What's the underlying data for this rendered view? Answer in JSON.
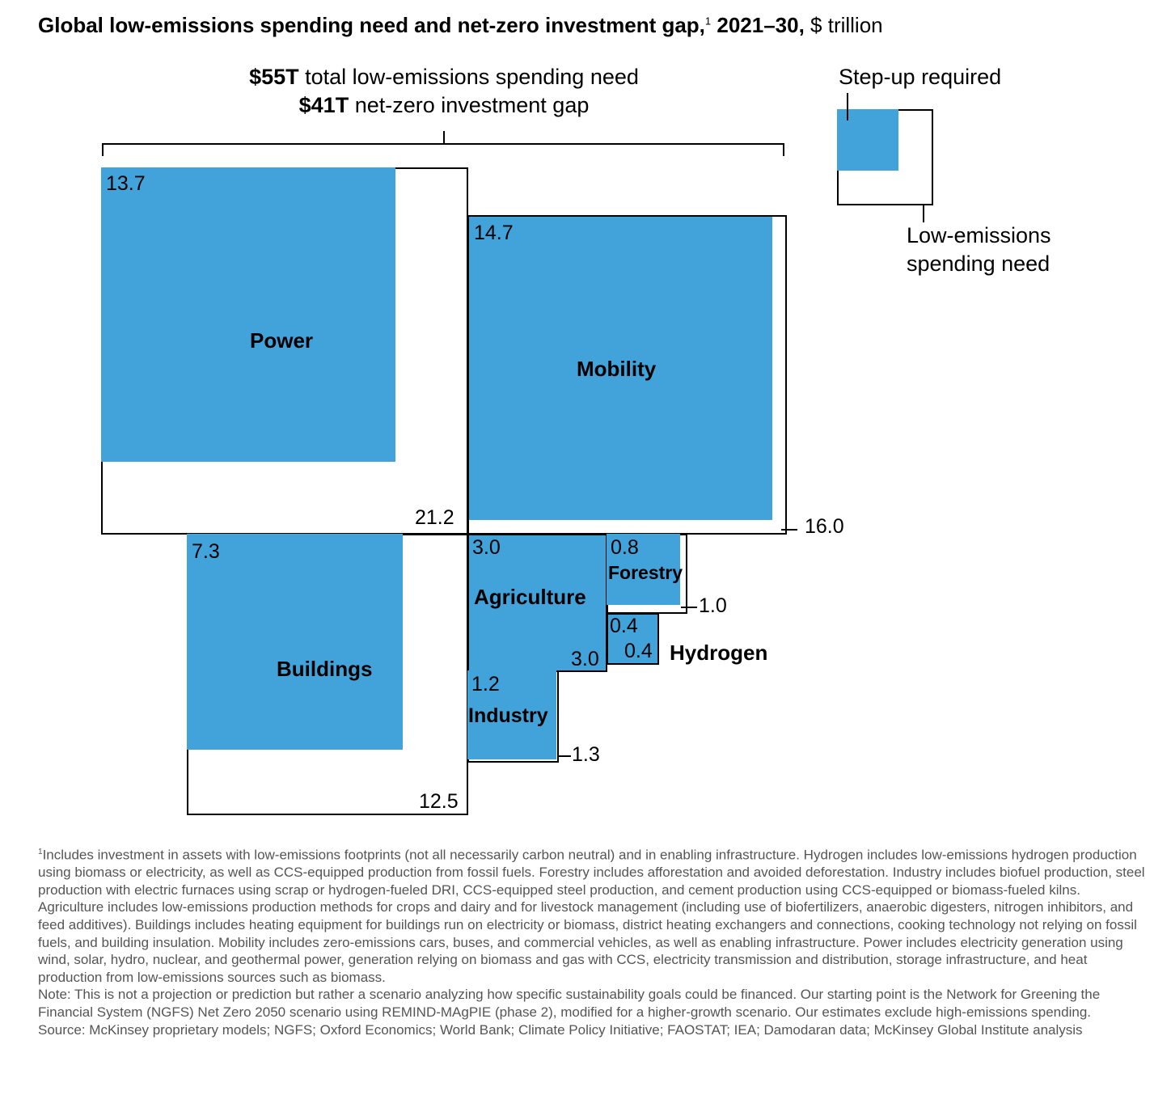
{
  "chart_data": {
    "type": "treemap-nested-squares",
    "title": {
      "bold": "Global low-emissions spending need and net-zero investment gap,",
      "footnote_mark": "1",
      "bold_years": " 2021–30,",
      "unit": " $ trillion"
    },
    "headline": {
      "total_bold": "$55T",
      "total_text": " total low-emissions spending need",
      "gap_bold": "$41T",
      "gap_text": " net-zero investment gap"
    },
    "legend": {
      "step_up": "Step-up required",
      "need_line1": "Low-emissions",
      "need_line2": "spending need"
    },
    "series": [
      {
        "name": "Power",
        "spending_need": 21.2,
        "step_up": 13.7,
        "need_label": "21.2",
        "step_label": "13.7"
      },
      {
        "name": "Mobility",
        "spending_need": 16.0,
        "step_up": 14.7,
        "need_label": "16.0",
        "step_label": "14.7"
      },
      {
        "name": "Buildings",
        "spending_need": 12.5,
        "step_up": 7.3,
        "need_label": "12.5",
        "step_label": "7.3"
      },
      {
        "name": "Agriculture",
        "spending_need": 3.0,
        "step_up": 3.0,
        "need_label": "3.0",
        "step_label": "3.0"
      },
      {
        "name": "Industry",
        "spending_need": 1.3,
        "step_up": 1.2,
        "need_label": "1.3",
        "step_label": "1.2"
      },
      {
        "name": "Forestry",
        "spending_need": 1.0,
        "step_up": 0.8,
        "need_label": "1.0",
        "step_label": "0.8"
      },
      {
        "name": "Hydrogen",
        "spending_need": 0.4,
        "step_up": 0.4,
        "need_label": "0.4",
        "step_label": "0.4"
      }
    ],
    "colors": {
      "step_up": "#42a2da",
      "need": "#ffffff"
    }
  },
  "notes": {
    "footnote_mark": "1",
    "footnote": "Includes investment in assets with low-emissions footprints (not all necessarily carbon neutral) and in enabling infrastructure. Hydrogen includes low-emissions hydrogen production using biomass or electricity, as well as CCS-equipped production from fossil fuels. Forestry includes afforestation and avoided deforestation. Industry includes biofuel production, steel production with electric furnaces using scrap or hydrogen-fueled DRI, CCS-equipped steel production, and cement production using CCS-equipped or biomass-fueled kilns. Agriculture includes low-emissions production methods for crops and dairy and for livestock management (including use of biofertilizers, anaerobic digesters, nitrogen inhibitors, and feed additives). Buildings includes heating equipment for buildings run on electricity or biomass, district heating exchangers and connections, cooking technology not relying on fossil fuels, and building insulation. Mobility includes zero-emissions cars, buses, and commercial vehicles, as well as enabling infrastructure. Power includes electricity generation using wind, solar, hydro, nuclear, and geothermal power, generation relying on biomass and gas with CCS, electricity transmission and distribution, storage infrastructure, and heat production from low-emissions sources such as biomass.",
    "note": "Note: This is not a projection or prediction but rather a scenario analyzing how specific sustainability goals could be financed. Our starting point is the Network for Greening the Financial System (NGFS) Net Zero 2050 scenario using REMIND-MAgPIE (phase 2), modified for a higher-growth scenario. Our estimates exclude high-emissions spending.",
    "source": "Source: McKinsey proprietary models; NGFS; Oxford Economics; World Bank; Climate Policy Initiative; FAOSTAT; IEA; Damodaran data; McKinsey Global Institute analysis"
  }
}
